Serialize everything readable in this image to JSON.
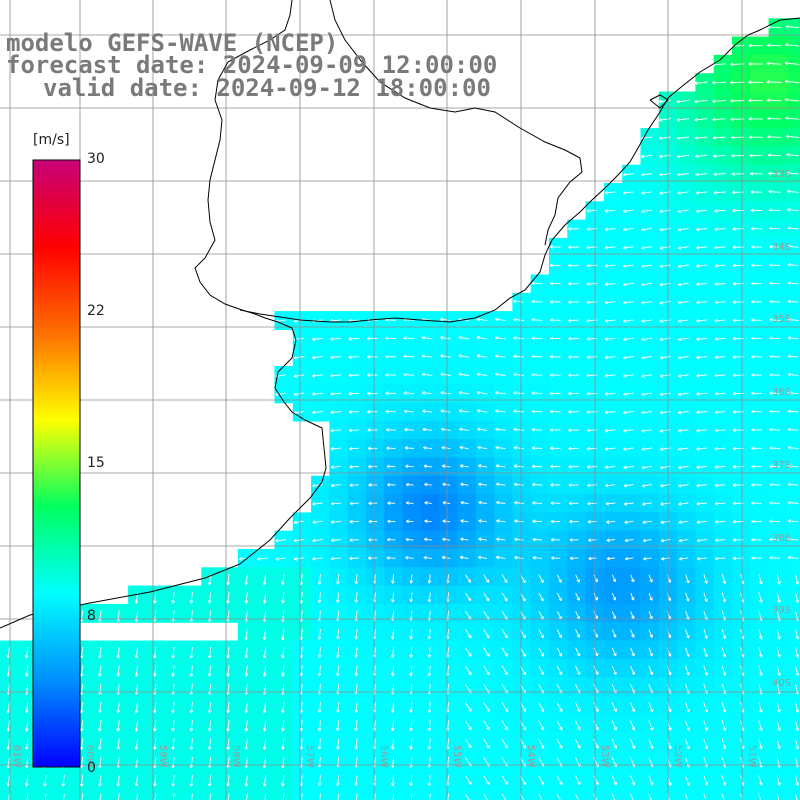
{
  "header": {
    "model_line": "modelo GEFS-WAVE (NCEP)",
    "forecast_line": "forecast date: 2024-09-09 12:00:00",
    "valid_line": "valid date: 2024-09-12 18:00:00"
  },
  "colorbar": {
    "unit": "[m/s]",
    "ticks": [
      {
        "label": "30",
        "value": 30
      },
      {
        "label": "22",
        "value": 22
      },
      {
        "label": "15",
        "value": 15
      },
      {
        "label": "8",
        "value": 8
      },
      {
        "label": "0",
        "value": 0
      }
    ],
    "stops": [
      "#0000ff",
      "#0090ff",
      "#00ffff",
      "#00ff60",
      "#ffff00",
      "#ff7000",
      "#ff0000",
      "#c8007a"
    ]
  },
  "map": {
    "lat_labels": [
      "33S",
      "34S",
      "35S",
      "36S",
      "37S",
      "38S",
      "39S",
      "40S"
    ],
    "lon_labels": [
      "61W",
      "60W",
      "59W",
      "58W",
      "57W",
      "56W",
      "55W",
      "54W",
      "53W",
      "52W",
      "51W"
    ],
    "land_color": "#ffffff",
    "grid_color": "#8c8c8c",
    "coast_color": "#000000"
  }
}
